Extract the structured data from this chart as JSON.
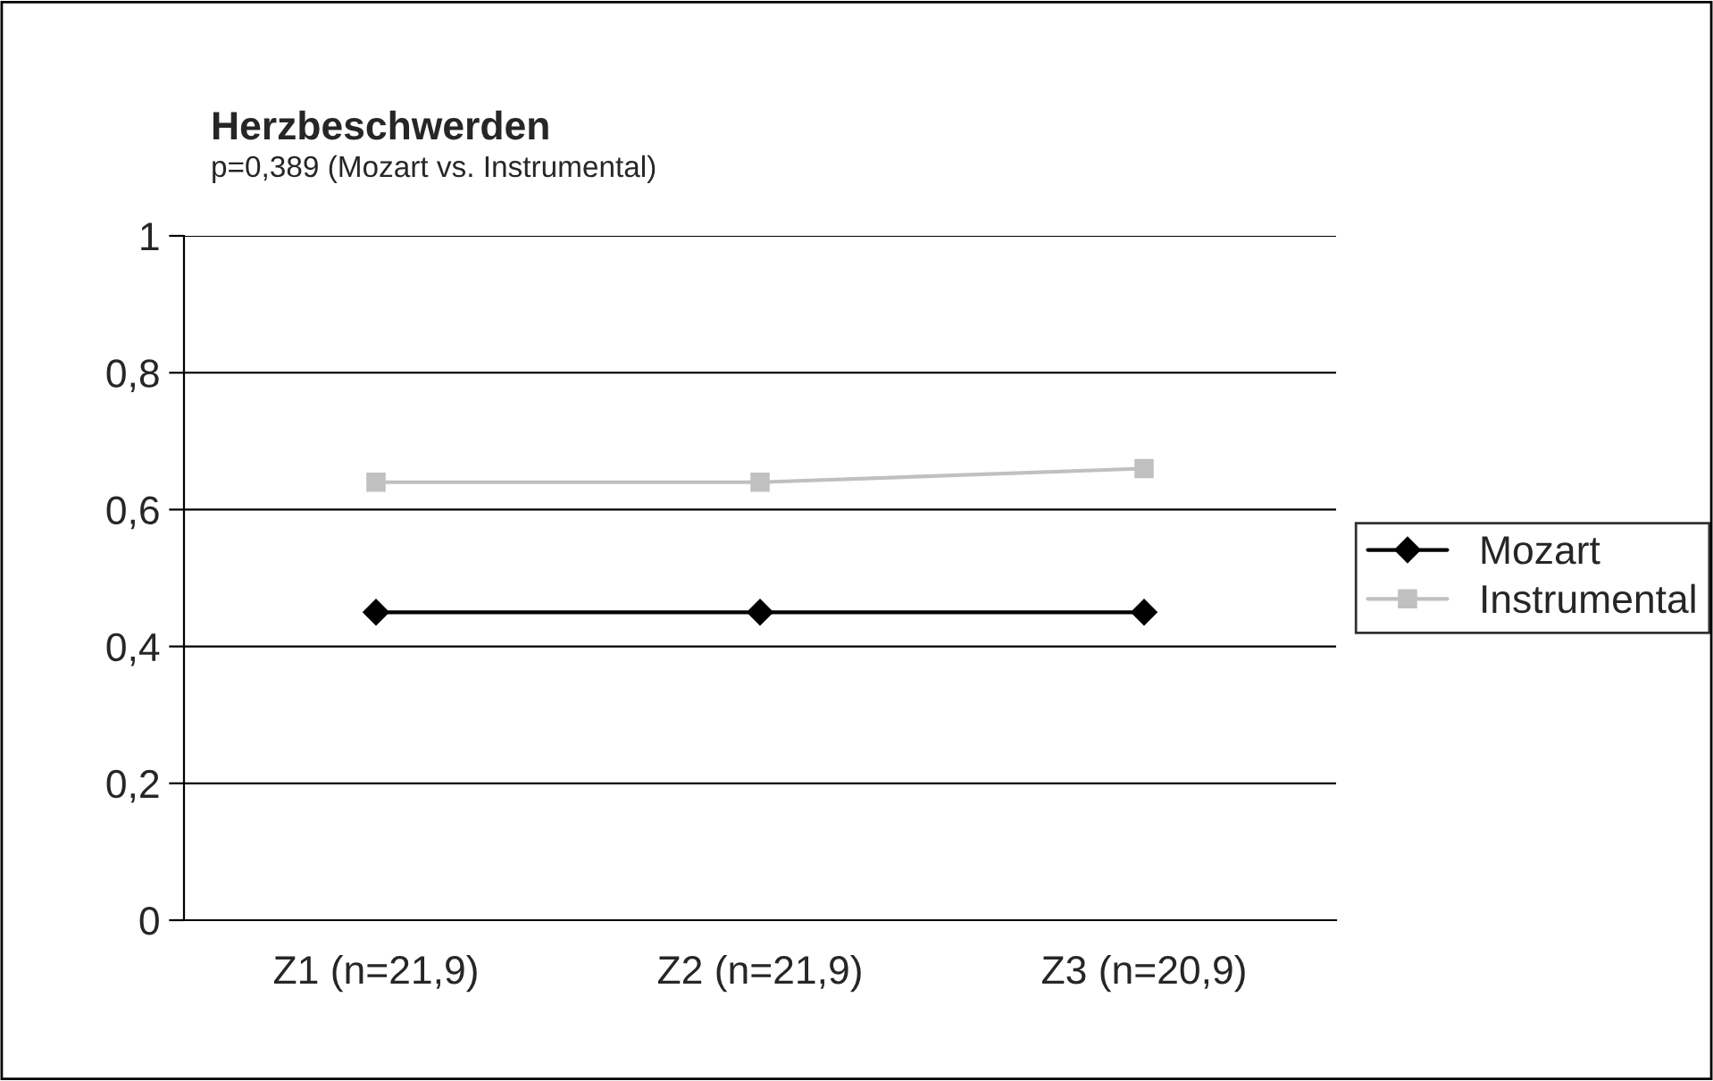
{
  "chart_data": {
    "type": "line",
    "title": "Herzbeschwerden",
    "subtitle": "p=0,389 (Mozart vs. Instrumental)",
    "categories": [
      "Z1 (n=21,9)",
      "Z2 (n=21,9)",
      "Z3 (n=20,9)"
    ],
    "series": [
      {
        "name": "Mozart",
        "color": "#000000",
        "values": [
          0.45,
          0.45,
          0.45
        ],
        "marker": "diamond"
      },
      {
        "name": "Instrumental",
        "color": "#c0c0c0",
        "values": [
          0.64,
          0.64,
          0.66
        ],
        "marker": "square"
      }
    ],
    "ylim": [
      0,
      1
    ],
    "yticks": [
      0,
      {
        "value": 0.2,
        "label": "0,2"
      },
      {
        "value": 0.4,
        "label": "0,4"
      },
      {
        "value": 0.6,
        "label": "0,6"
      },
      {
        "value": 0.8,
        "label": "0,8"
      },
      1
    ],
    "grid": "y",
    "legend": "right",
    "line_style": "solid"
  }
}
